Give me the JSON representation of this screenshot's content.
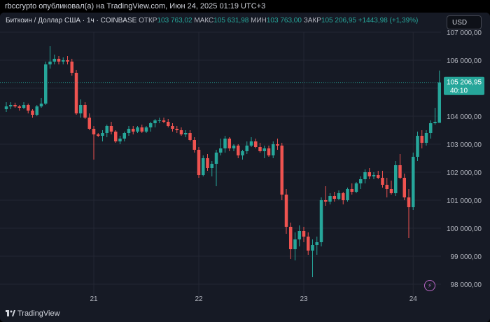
{
  "header": {
    "published_line": "rbccrypto опубликовал(а) на TradingView.com, Июн 24, 2025 01:19 UTC+3"
  },
  "legend": {
    "symbol": "Биткоин / Доллар США · 1ч · COINBASE",
    "open_label": "ОТКР",
    "open_value": "103 763,02",
    "high_label": "МАКС",
    "high_value": "105 631,98",
    "low_label": "МИН",
    "low_value": "103 763,00",
    "close_label": "ЗАКР",
    "close_value": "105 206,95",
    "change": "+1443,98 (+1,39%)"
  },
  "currency_button": "USD",
  "price_tag": {
    "price": "105 206,95",
    "countdown": "40:10"
  },
  "footer": {
    "brand": "TradingView"
  },
  "colors": {
    "up": "#26a69a",
    "down": "#ef5350",
    "background": "#161a25",
    "grid": "#232632",
    "axis_text": "#b2b5be",
    "price_line": "#26a69a"
  },
  "chart_data": {
    "type": "candlestick",
    "timeframe": "1h",
    "ylim": [
      97400,
      107000
    ],
    "y_ticks": [
      {
        "value": 107000,
        "label": "107 000,00"
      },
      {
        "value": 106000,
        "label": "106 000,00"
      },
      {
        "value": 105000,
        "label": "105 000,00"
      },
      {
        "value": 104000,
        "label": "104 000,00"
      },
      {
        "value": 103000,
        "label": "103 000,00"
      },
      {
        "value": 102000,
        "label": "102 000,00"
      },
      {
        "value": 101000,
        "label": "101 000,00"
      },
      {
        "value": 100000,
        "label": "100 000,00"
      },
      {
        "value": 99000,
        "label": "99 000,00"
      },
      {
        "value": 98000,
        "label": "98 000,00"
      }
    ],
    "x_ticks": [
      {
        "candle": 20,
        "label": "21"
      },
      {
        "candle": 44,
        "label": "22"
      },
      {
        "candle": 68,
        "label": "23"
      },
      {
        "candle": 93,
        "label": "24"
      }
    ],
    "last_price": 105206.95,
    "candles": [
      [
        104250,
        104500,
        104150,
        104350
      ],
      [
        104350,
        104500,
        104250,
        104400
      ],
      [
        104400,
        104480,
        104300,
        104350
      ],
      [
        104350,
        104400,
        104200,
        104300
      ],
      [
        104300,
        104500,
        104250,
        104400
      ],
      [
        104400,
        104450,
        104100,
        104200
      ],
      [
        104200,
        104250,
        103950,
        104050
      ],
      [
        104050,
        104400,
        104000,
        104350
      ],
      [
        104350,
        104650,
        104300,
        104450
      ],
      [
        104450,
        105950,
        104400,
        105850
      ],
      [
        105850,
        106500,
        105700,
        105950
      ],
      [
        105950,
        106200,
        105850,
        106050
      ],
      [
        106050,
        106150,
        105850,
        105950
      ],
      [
        105950,
        106100,
        105850,
        106000
      ],
      [
        106000,
        106150,
        105850,
        105950
      ],
      [
        105950,
        106050,
        105450,
        105550
      ],
      [
        105550,
        105650,
        104050,
        104100
      ],
      [
        104100,
        104600,
        103950,
        104400
      ],
      [
        104400,
        104500,
        103900,
        103950
      ],
      [
        103950,
        104100,
        103500,
        103550
      ],
      [
        103550,
        103650,
        102450,
        103350
      ],
      [
        103350,
        103400,
        103250,
        103300
      ],
      [
        103300,
        103500,
        103100,
        103400
      ],
      [
        103400,
        103700,
        103250,
        103650
      ],
      [
        103650,
        103800,
        103350,
        103450
      ],
      [
        103450,
        103500,
        103050,
        103100
      ],
      [
        103100,
        103300,
        103000,
        103200
      ],
      [
        103200,
        103450,
        103100,
        103400
      ],
      [
        103400,
        103650,
        103300,
        103550
      ],
      [
        103550,
        103650,
        103350,
        103450
      ],
      [
        103450,
        103650,
        103400,
        103600
      ],
      [
        103600,
        103700,
        103400,
        103450
      ],
      [
        103450,
        103650,
        103400,
        103600
      ],
      [
        103600,
        103800,
        103450,
        103750
      ],
      [
        103750,
        103900,
        103600,
        103850
      ],
      [
        103850,
        103950,
        103750,
        103850
      ],
      [
        103850,
        103950,
        103750,
        103800
      ],
      [
        103800,
        103900,
        103600,
        103650
      ],
      [
        103650,
        103750,
        103450,
        103550
      ],
      [
        103550,
        103650,
        103400,
        103500
      ],
      [
        103500,
        103600,
        103300,
        103350
      ],
      [
        103350,
        103500,
        103250,
        103400
      ],
      [
        103400,
        103500,
        103100,
        103150
      ],
      [
        103150,
        103250,
        102700,
        102800
      ],
      [
        102800,
        102900,
        101800,
        101900
      ],
      [
        101900,
        102600,
        101850,
        102500
      ],
      [
        102500,
        102650,
        102050,
        102150
      ],
      [
        102150,
        102400,
        101850,
        102300
      ],
      [
        102300,
        102800,
        101500,
        102700
      ],
      [
        102700,
        103200,
        102600,
        102850
      ],
      [
        102850,
        103300,
        102700,
        103200
      ],
      [
        103200,
        103250,
        102750,
        102850
      ],
      [
        102850,
        103000,
        102750,
        102950
      ],
      [
        102950,
        103000,
        102500,
        102600
      ],
      [
        102600,
        102800,
        102450,
        102750
      ],
      [
        102750,
        103100,
        102650,
        102950
      ],
      [
        102950,
        103250,
        102900,
        103100
      ],
      [
        103100,
        103200,
        102850,
        102900
      ],
      [
        102900,
        103050,
        102700,
        102750
      ],
      [
        102750,
        102950,
        102500,
        102850
      ],
      [
        102850,
        102950,
        102550,
        102600
      ],
      [
        102600,
        103100,
        102500,
        103000
      ],
      [
        103000,
        103200,
        102800,
        102950
      ],
      [
        102950,
        103050,
        101000,
        101200
      ],
      [
        101200,
        101400,
        99800,
        100050
      ],
      [
        100050,
        100200,
        98900,
        99250
      ],
      [
        99250,
        99850,
        98850,
        99600
      ],
      [
        99600,
        100100,
        99350,
        99900
      ],
      [
        99900,
        100050,
        99500,
        99700
      ],
      [
        99700,
        99850,
        99050,
        99200
      ],
      [
        99200,
        99600,
        98250,
        99400
      ],
      [
        99400,
        99700,
        99050,
        99500
      ],
      [
        99500,
        101100,
        99350,
        101000
      ],
      [
        101000,
        101500,
        100800,
        100950
      ],
      [
        100950,
        101250,
        100850,
        101150
      ],
      [
        101150,
        101300,
        100950,
        101050
      ],
      [
        101050,
        101350,
        101000,
        101250
      ],
      [
        101250,
        101300,
        100850,
        101000
      ],
      [
        101000,
        101450,
        100950,
        101400
      ],
      [
        101400,
        101600,
        101200,
        101300
      ],
      [
        101300,
        101650,
        101250,
        101600
      ],
      [
        101600,
        101850,
        101400,
        101750
      ],
      [
        101750,
        102100,
        101600,
        102000
      ],
      [
        102000,
        102150,
        101750,
        101850
      ],
      [
        101850,
        102000,
        101750,
        101900
      ],
      [
        101900,
        102050,
        101750,
        101800
      ],
      [
        101800,
        102050,
        101450,
        101550
      ],
      [
        101550,
        101800,
        101100,
        101400
      ],
      [
        101400,
        101700,
        101200,
        101250
      ],
      [
        101250,
        102400,
        101150,
        102250
      ],
      [
        102250,
        102650,
        101750,
        101800
      ],
      [
        101800,
        101950,
        101000,
        101100
      ],
      [
        101100,
        101400,
        99650,
        100750
      ],
      [
        100750,
        102700,
        100650,
        102550
      ],
      [
        102550,
        103450,
        102400,
        103300
      ],
      [
        103300,
        103500,
        102850,
        103050
      ],
      [
        103050,
        103500,
        102950,
        103400
      ],
      [
        103400,
        103850,
        103200,
        103750
      ],
      [
        103750,
        104300,
        103700,
        103800
      ],
      [
        103763.02,
        105631.98,
        103763,
        105206.95
      ]
    ]
  }
}
